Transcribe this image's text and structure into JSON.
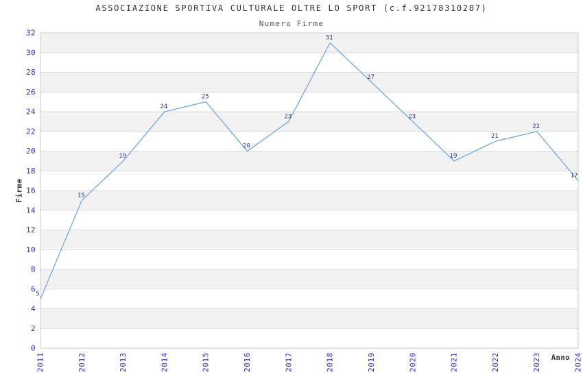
{
  "header": {
    "title": "ASSOCIAZIONE SPORTIVA CULTURALE OLTRE LO SPORT (c.f.92178310287)",
    "subtitle": "Numero Firme"
  },
  "chart_data": {
    "type": "line",
    "title": "ASSOCIAZIONE SPORTIVA CULTURALE OLTRE LO SPORT (c.f.92178310287)",
    "subtitle": "Numero Firme",
    "xlabel": "Anno",
    "ylabel": "Firme",
    "categories": [
      "2011",
      "2012",
      "2013",
      "2014",
      "2015",
      "2016",
      "2017",
      "2018",
      "2019",
      "2020",
      "2021",
      "2022",
      "2023",
      "2024"
    ],
    "values": [
      5,
      15,
      19,
      24,
      25,
      20,
      23,
      31,
      27,
      23,
      19,
      21,
      22,
      17
    ],
    "data_labels": [
      "5",
      "15",
      "19",
      "24",
      "25",
      "20",
      "23",
      "31",
      "27",
      "23",
      "19",
      "21",
      "22",
      "17"
    ],
    "y_ticks": [
      0,
      2,
      4,
      6,
      8,
      10,
      12,
      14,
      16,
      18,
      20,
      22,
      24,
      26,
      28,
      30,
      32
    ],
    "ylim": [
      0,
      32
    ],
    "legend": "none",
    "grid": "horizontal-bands",
    "colors": {
      "line": "#7AACE2",
      "data_label": "#333399",
      "tick_label": "#2B2BD5",
      "band_fill": "#F2F2F2",
      "gridline": "#DCDCDC",
      "plot_border": "#C9C9C9",
      "title_text": "#333333",
      "subtitle_text": "#555555",
      "axis_title_text": "#333333",
      "background": "#FFFFFF"
    }
  }
}
